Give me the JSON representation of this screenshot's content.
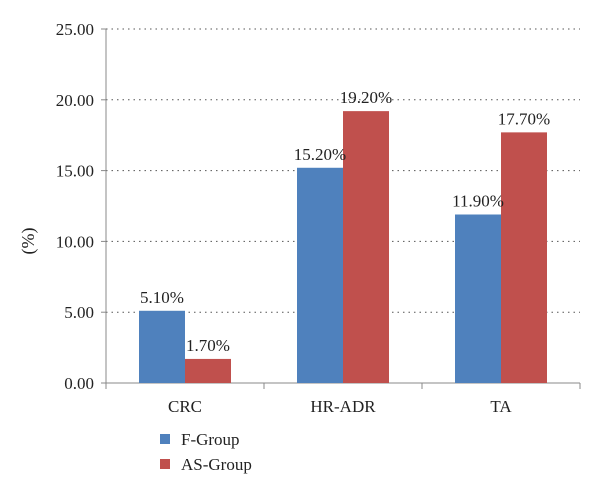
{
  "chart_data": {
    "type": "bar",
    "title": "",
    "xlabel": "",
    "ylabel": "(%)",
    "categories": [
      "CRC",
      "HR-ADR",
      "TA"
    ],
    "series": [
      {
        "name": "F-Group",
        "color": "#4f81bd",
        "values": [
          5.1,
          15.2,
          11.9
        ],
        "labels": [
          "5.10%",
          "15.20%",
          "11.90%"
        ]
      },
      {
        "name": "AS-Group",
        "color": "#c0504d",
        "values": [
          1.7,
          19.2,
          17.7
        ],
        "labels": [
          "1.70%",
          "19.20%",
          "17.70%"
        ]
      }
    ],
    "ylim": [
      0,
      25
    ],
    "yticks": [
      0,
      5,
      10,
      15,
      20,
      25
    ],
    "ytick_labels": [
      "0.00",
      "5.00",
      "10.00",
      "15.00",
      "20.00",
      "25.00"
    ],
    "grid": "horizontal dotted",
    "legend_position": "bottom-left"
  }
}
